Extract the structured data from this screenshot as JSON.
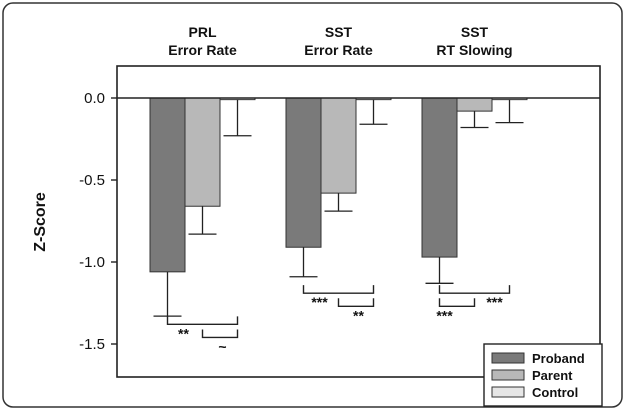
{
  "chart_data": {
    "type": "bar",
    "categories": [
      {
        "line1": "PRL",
        "line2": "Error Rate"
      },
      {
        "line1": "SST",
        "line2": "Error Rate"
      },
      {
        "line1": "SST",
        "line2": "RT Slowing"
      }
    ],
    "ylabel": "Z-Score",
    "ylim": [
      -1.7,
      0.2
    ],
    "yticks": [
      {
        "value": 0.0,
        "label": "0.0"
      },
      {
        "value": -0.5,
        "label": "-0.5"
      },
      {
        "value": -1.0,
        "label": "-1.0"
      },
      {
        "value": -1.5,
        "label": "-1.5"
      }
    ],
    "series": [
      {
        "name": "Proband",
        "color": "#7a7a7a",
        "values": [
          -1.06,
          -0.91,
          -0.97
        ],
        "errors": [
          0.27,
          0.18,
          0.16
        ]
      },
      {
        "name": "Parent",
        "color": "#b8b8b8",
        "values": [
          -0.66,
          -0.58,
          -0.08
        ],
        "errors": [
          0.17,
          0.11,
          0.1
        ]
      },
      {
        "name": "Control",
        "color": "#e6e6e6",
        "values": [
          -0.01,
          -0.01,
          -0.01
        ],
        "errors": [
          0.22,
          0.15,
          0.14
        ]
      }
    ],
    "significance": [
      {
        "group": 0,
        "from": 0,
        "to": 2,
        "y": -1.38,
        "label": "**"
      },
      {
        "group": 0,
        "from": 1,
        "to": 2,
        "y": -1.46,
        "label": "~"
      },
      {
        "group": 1,
        "from": 0,
        "to": 2,
        "y": -1.19,
        "label": "***"
      },
      {
        "group": 1,
        "from": 1,
        "to": 2,
        "y": -1.27,
        "label": "**"
      },
      {
        "group": 2,
        "from": 0,
        "to": 1,
        "y": -1.27,
        "label": "***"
      },
      {
        "group": 2,
        "from": 0,
        "to": 2,
        "y": -1.19,
        "label": "***"
      }
    ],
    "legend_position": "bottom-right"
  }
}
